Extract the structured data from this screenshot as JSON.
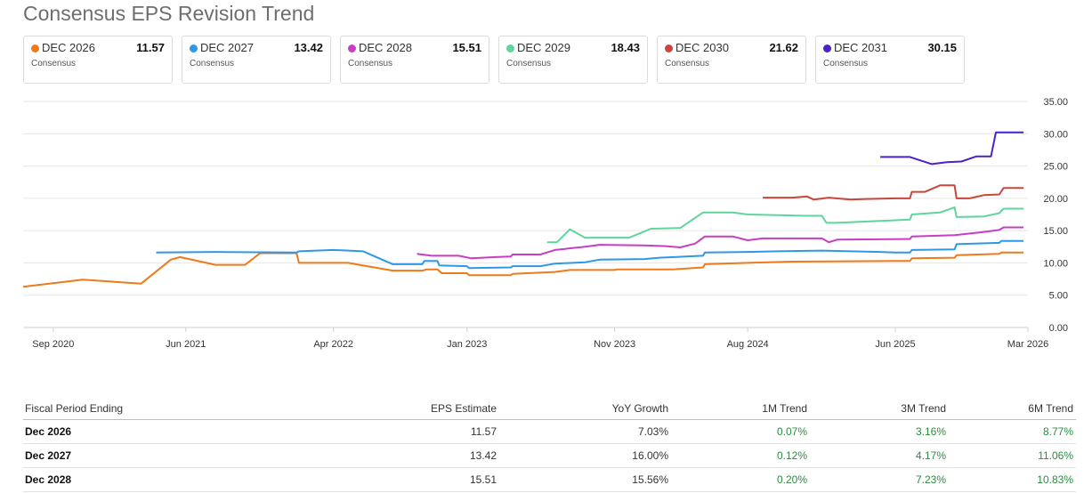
{
  "header": {
    "title": "Consensus EPS Revision Trend"
  },
  "cards": [
    {
      "label": "DEC 2026",
      "value": "11.57",
      "sub": "Consensus",
      "color": "#ee7a1a"
    },
    {
      "label": "DEC 2027",
      "value": "13.42",
      "sub": "Consensus",
      "color": "#2e98e6"
    },
    {
      "label": "DEC 2028",
      "value": "15.51",
      "sub": "Consensus",
      "color": "#c93dc4"
    },
    {
      "label": "DEC 2029",
      "value": "18.43",
      "sub": "Consensus",
      "color": "#5fd59c"
    },
    {
      "label": "DEC 2030",
      "value": "21.62",
      "sub": "Consensus",
      "color": "#c9463a"
    },
    {
      "label": "DEC 2031",
      "value": "30.15",
      "sub": "Consensus",
      "color": "#4a22c8"
    }
  ],
  "chart_data": {
    "type": "line",
    "x_ticks": [
      "Sep 2020",
      "Jun 2021",
      "Apr 2022",
      "Jan 2023",
      "Nov 2023",
      "Aug 2024",
      "Jun 2025",
      "Mar 2026"
    ],
    "y_ticks": [
      "0.00",
      "5.00",
      "10.00",
      "15.00",
      "20.00",
      "25.00",
      "30.00",
      "35.00"
    ],
    "ylim": [
      0,
      35
    ],
    "xlim": [
      "2020-07-01",
      "2026-03-01"
    ],
    "grid": true,
    "series": [
      {
        "name": "DEC 2026",
        "color": "#ee7a1a",
        "points": [
          [
            "2020-07-01",
            6.3
          ],
          [
            "2020-11-01",
            7.4
          ],
          [
            "2021-03-01",
            6.8
          ],
          [
            "2021-05-01",
            10.5
          ],
          [
            "2021-05-20",
            10.9
          ],
          [
            "2021-08-01",
            9.7
          ],
          [
            "2021-10-01",
            9.7
          ],
          [
            "2021-11-01",
            11.5
          ],
          [
            "2022-01-15",
            11.5
          ],
          [
            "2022-01-20",
            10.0
          ],
          [
            "2022-05-01",
            10.0
          ],
          [
            "2022-08-01",
            8.8
          ],
          [
            "2022-10-01",
            8.8
          ],
          [
            "2022-10-10",
            9.0
          ],
          [
            "2022-11-01",
            9.0
          ],
          [
            "2022-11-10",
            8.4
          ],
          [
            "2023-01-01",
            8.4
          ],
          [
            "2023-01-05",
            8.1
          ],
          [
            "2023-04-01",
            8.1
          ],
          [
            "2023-04-05",
            8.3
          ],
          [
            "2023-07-01",
            8.6
          ],
          [
            "2023-08-01",
            8.9
          ],
          [
            "2023-11-01",
            8.9
          ],
          [
            "2023-11-05",
            9.0
          ],
          [
            "2024-03-01",
            9.0
          ],
          [
            "2024-05-01",
            9.3
          ],
          [
            "2024-05-05",
            9.8
          ],
          [
            "2024-08-01",
            10.0
          ],
          [
            "2024-11-01",
            10.2
          ],
          [
            "2025-06-01",
            10.3
          ],
          [
            "2025-07-01",
            10.3
          ],
          [
            "2025-07-05",
            10.7
          ],
          [
            "2025-10-01",
            10.8
          ],
          [
            "2025-10-05",
            11.2
          ],
          [
            "2026-01-01",
            11.4
          ],
          [
            "2026-01-05",
            11.6
          ],
          [
            "2026-02-20",
            11.6
          ]
        ]
      },
      {
        "name": "DEC 2027",
        "color": "#2e98e6",
        "points": [
          [
            "2021-04-01",
            11.6
          ],
          [
            "2021-08-01",
            11.7
          ],
          [
            "2022-01-15",
            11.6
          ],
          [
            "2022-01-20",
            11.8
          ],
          [
            "2022-04-01",
            12.0
          ],
          [
            "2022-06-01",
            11.8
          ],
          [
            "2022-08-01",
            9.8
          ],
          [
            "2022-10-01",
            9.8
          ],
          [
            "2022-10-05",
            10.3
          ],
          [
            "2022-11-01",
            10.3
          ],
          [
            "2022-11-05",
            9.6
          ],
          [
            "2023-01-01",
            9.5
          ],
          [
            "2023-01-05",
            9.2
          ],
          [
            "2023-04-01",
            9.3
          ],
          [
            "2023-04-05",
            9.5
          ],
          [
            "2023-06-01",
            9.5
          ],
          [
            "2023-07-01",
            9.9
          ],
          [
            "2023-09-01",
            10.1
          ],
          [
            "2023-10-01",
            10.5
          ],
          [
            "2024-01-01",
            10.6
          ],
          [
            "2024-02-01",
            10.8
          ],
          [
            "2024-05-01",
            11.1
          ],
          [
            "2024-05-05",
            11.6
          ],
          [
            "2024-08-01",
            11.7
          ],
          [
            "2024-10-01",
            11.8
          ],
          [
            "2025-01-01",
            11.9
          ],
          [
            "2025-05-01",
            11.7
          ],
          [
            "2025-06-01",
            11.6
          ],
          [
            "2025-07-01",
            11.6
          ],
          [
            "2025-07-05",
            12.0
          ],
          [
            "2025-10-01",
            12.1
          ],
          [
            "2025-10-05",
            12.9
          ],
          [
            "2026-01-01",
            13.1
          ],
          [
            "2026-01-05",
            13.4
          ],
          [
            "2026-02-20",
            13.4
          ]
        ]
      },
      {
        "name": "DEC 2028",
        "color": "#c93dc4",
        "points": [
          [
            "2022-09-20",
            11.4
          ],
          [
            "2022-10-20",
            11.1
          ],
          [
            "2022-12-15",
            11.1
          ],
          [
            "2023-01-10",
            10.7
          ],
          [
            "2023-03-01",
            10.9
          ],
          [
            "2023-04-01",
            11.0
          ],
          [
            "2023-04-05",
            11.3
          ],
          [
            "2023-06-01",
            11.3
          ],
          [
            "2023-07-01",
            12.0
          ],
          [
            "2023-09-01",
            12.5
          ],
          [
            "2023-10-01",
            12.8
          ],
          [
            "2024-01-01",
            12.7
          ],
          [
            "2024-02-15",
            12.6
          ],
          [
            "2024-03-15",
            12.4
          ],
          [
            "2024-04-15",
            13.0
          ],
          [
            "2024-05-05",
            14.1
          ],
          [
            "2024-07-01",
            14.1
          ],
          [
            "2024-08-01",
            13.5
          ],
          [
            "2024-09-01",
            13.8
          ],
          [
            "2024-12-01",
            13.8
          ],
          [
            "2025-01-01",
            13.8
          ],
          [
            "2025-01-15",
            13.2
          ],
          [
            "2025-02-01",
            13.6
          ],
          [
            "2025-07-01",
            13.7
          ],
          [
            "2025-07-05",
            14.1
          ],
          [
            "2025-10-01",
            14.3
          ],
          [
            "2025-12-01",
            14.8
          ],
          [
            "2026-01-01",
            15.1
          ],
          [
            "2026-01-10",
            15.5
          ],
          [
            "2026-02-20",
            15.5
          ]
        ]
      },
      {
        "name": "DEC 2029",
        "color": "#5fd59c",
        "points": [
          [
            "2023-06-15",
            13.2
          ],
          [
            "2023-07-05",
            13.2
          ],
          [
            "2023-08-01",
            15.2
          ],
          [
            "2023-09-01",
            13.9
          ],
          [
            "2023-12-01",
            13.9
          ],
          [
            "2024-01-15",
            15.3
          ],
          [
            "2024-03-15",
            15.4
          ],
          [
            "2024-05-01",
            17.8
          ],
          [
            "2024-07-01",
            17.8
          ],
          [
            "2024-08-01",
            17.5
          ],
          [
            "2024-10-01",
            17.4
          ],
          [
            "2024-12-01",
            17.3
          ],
          [
            "2025-01-01",
            17.3
          ],
          [
            "2025-01-10",
            16.2
          ],
          [
            "2025-02-01",
            16.2
          ],
          [
            "2025-06-01",
            16.6
          ],
          [
            "2025-07-01",
            16.7
          ],
          [
            "2025-07-05",
            17.5
          ],
          [
            "2025-09-01",
            17.8
          ],
          [
            "2025-10-01",
            18.6
          ],
          [
            "2025-10-05",
            17.1
          ],
          [
            "2025-12-01",
            17.2
          ],
          [
            "2026-01-01",
            17.7
          ],
          [
            "2026-01-10",
            18.4
          ],
          [
            "2026-02-20",
            18.4
          ]
        ]
      },
      {
        "name": "DEC 2030",
        "color": "#c9463a",
        "points": [
          [
            "2024-09-01",
            20.1
          ],
          [
            "2024-11-01",
            20.1
          ],
          [
            "2024-12-01",
            20.3
          ],
          [
            "2024-12-15",
            19.8
          ],
          [
            "2025-01-15",
            20.1
          ],
          [
            "2025-03-01",
            19.8
          ],
          [
            "2025-04-01",
            19.9
          ],
          [
            "2025-06-01",
            20.0
          ],
          [
            "2025-07-01",
            20.0
          ],
          [
            "2025-07-05",
            21.0
          ],
          [
            "2025-08-01",
            21.0
          ],
          [
            "2025-09-01",
            22.0
          ],
          [
            "2025-10-01",
            22.0
          ],
          [
            "2025-10-05",
            20.0
          ],
          [
            "2025-11-01",
            20.0
          ],
          [
            "2025-12-01",
            20.5
          ],
          [
            "2026-01-01",
            20.6
          ],
          [
            "2026-01-10",
            21.6
          ],
          [
            "2026-02-20",
            21.6
          ]
        ]
      },
      {
        "name": "DEC 2031",
        "color": "#4a22c8",
        "points": [
          [
            "2025-05-01",
            26.4
          ],
          [
            "2025-07-01",
            26.4
          ],
          [
            "2025-08-15",
            25.3
          ],
          [
            "2025-09-15",
            25.6
          ],
          [
            "2025-10-15",
            25.7
          ],
          [
            "2025-11-15",
            26.5
          ],
          [
            "2025-12-15",
            26.5
          ],
          [
            "2025-12-25",
            30.2
          ],
          [
            "2026-02-20",
            30.2
          ]
        ]
      }
    ]
  },
  "table": {
    "headers": [
      "Fiscal Period Ending",
      "EPS Estimate",
      "YoY Growth",
      "1M Trend",
      "3M Trend",
      "6M Trend"
    ],
    "rows": [
      [
        "Dec 2026",
        "11.57",
        "7.03%",
        "0.07%",
        "3.16%",
        "8.77%"
      ],
      [
        "Dec 2027",
        "13.42",
        "16.00%",
        "0.12%",
        "4.17%",
        "11.06%"
      ],
      [
        "Dec 2028",
        "15.51",
        "15.56%",
        "0.20%",
        "7.23%",
        "10.83%"
      ]
    ]
  }
}
